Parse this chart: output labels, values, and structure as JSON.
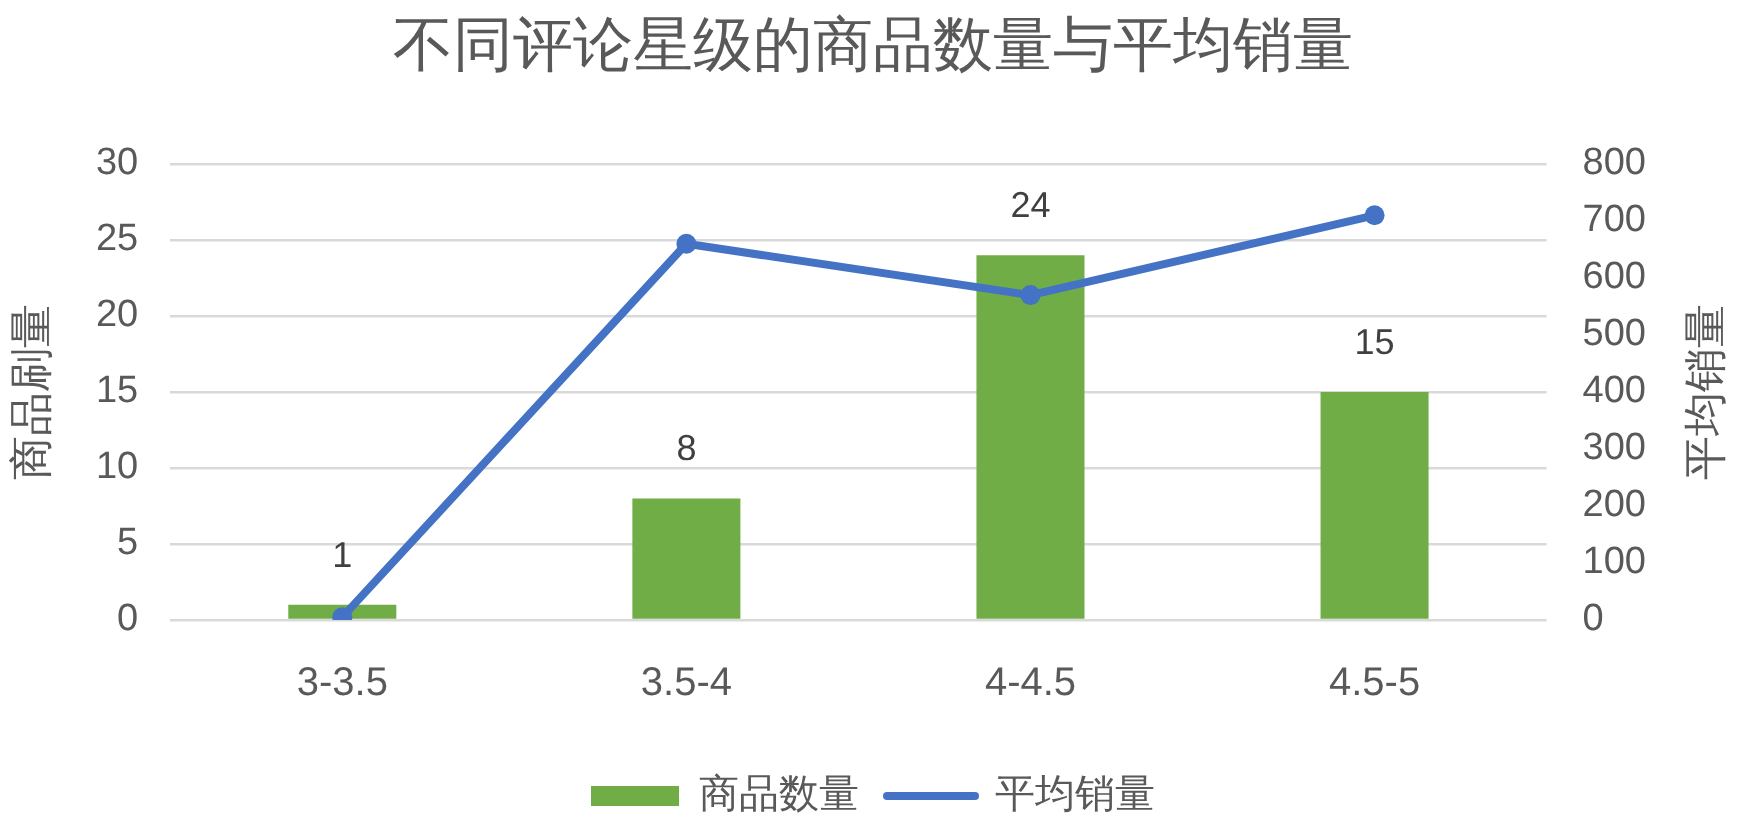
{
  "chart_data": {
    "type": "bar",
    "title": "不同评论星级的商品数量与平均销量",
    "ylabel": "商品刷量",
    "y2label": "平均销量",
    "categories": [
      "3-3.5",
      "3.5-4",
      "4-4.5",
      "4.5-5"
    ],
    "series": [
      {
        "name": "商品数量",
        "color": "#70ad47",
        "values": [
          1,
          8,
          24,
          15
        ],
        "value_labels": [
          "1",
          "8",
          "24",
          "15"
        ]
      },
      {
        "name": "平均销量",
        "type": "line",
        "axis": "y2",
        "color": "#4472c4",
        "values": [
          5,
          660,
          570,
          710
        ],
        "marker": "circle"
      }
    ],
    "ylim": [
      0,
      30
    ],
    "yticks": [
      0,
      5,
      10,
      15,
      20,
      25,
      30
    ],
    "y2lim": [
      0,
      800
    ],
    "y2ticks": [
      0,
      100,
      200,
      300,
      400,
      500,
      600,
      700,
      800
    ],
    "grid": "y",
    "legend": "bottom"
  }
}
